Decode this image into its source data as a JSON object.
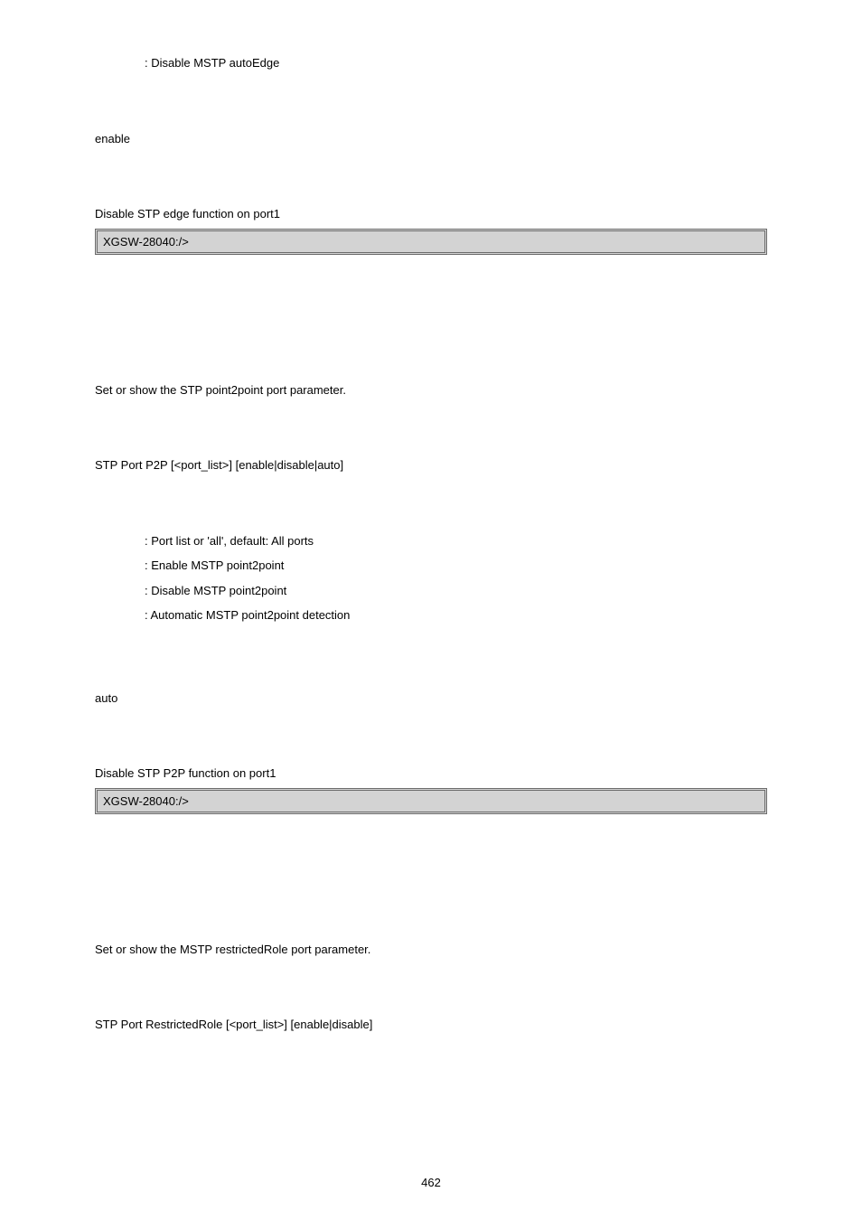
{
  "section1": {
    "param_disable": ": Disable MSTP autoEdge",
    "default": "enable",
    "example_desc": "Disable STP edge function on port1",
    "code": "XGSW-28040:/>"
  },
  "section2": {
    "desc": "Set or show the STP point2point port parameter.",
    "syntax": "STP Port P2P [<port_list>] [enable|disable|auto]",
    "params": {
      "port_list": ": Port list or 'all', default: All ports",
      "enable": ": Enable MSTP point2point",
      "disable": " : Disable MSTP point2point",
      "auto": ": Automatic MSTP point2point detection"
    },
    "default": "auto",
    "example_desc": "Disable STP P2P function on port1",
    "code": "XGSW-28040:/>"
  },
  "section3": {
    "desc": "Set or show the MSTP restrictedRole port parameter.",
    "syntax": "STP Port RestrictedRole [<port_list>] [enable|disable]"
  },
  "page_number": "462"
}
